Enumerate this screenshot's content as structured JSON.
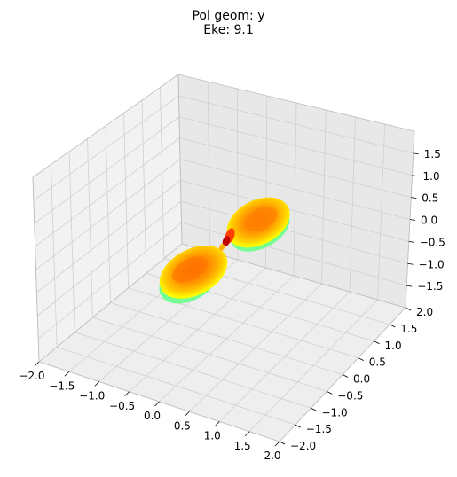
{
  "chart_data": {
    "type": "surface3d",
    "title": "Pol geom: y",
    "subtitle": "Eke: 9.1",
    "xlabel": "",
    "ylabel": "",
    "zlabel": "",
    "xlim": [
      -2.0,
      2.0
    ],
    "ylim": [
      -2.0,
      2.0
    ],
    "zlim": [
      -2.0,
      2.0
    ],
    "x_ticks": [
      "−2.0",
      "−1.5",
      "−1.0",
      "−0.5",
      "0.0",
      "0.5",
      "1.0",
      "1.5",
      "2.0"
    ],
    "y_ticks": [
      "−2.0",
      "−1.5",
      "−1.0",
      "−0.5",
      "0.0",
      "0.5",
      "1.0",
      "1.5",
      "2.0"
    ],
    "z_ticks": [
      "−1.5",
      "−1.0",
      "−0.5",
      "0.0",
      "0.5",
      "1.0",
      "1.5"
    ],
    "grid": true,
    "surface": {
      "shape": "two-lobe polar surface along y axis",
      "colormap": [
        "#00ff80",
        "#80ff40",
        "#ffff00",
        "#ffc000",
        "#ff8000",
        "#ff4000",
        "#c00000"
      ]
    }
  }
}
